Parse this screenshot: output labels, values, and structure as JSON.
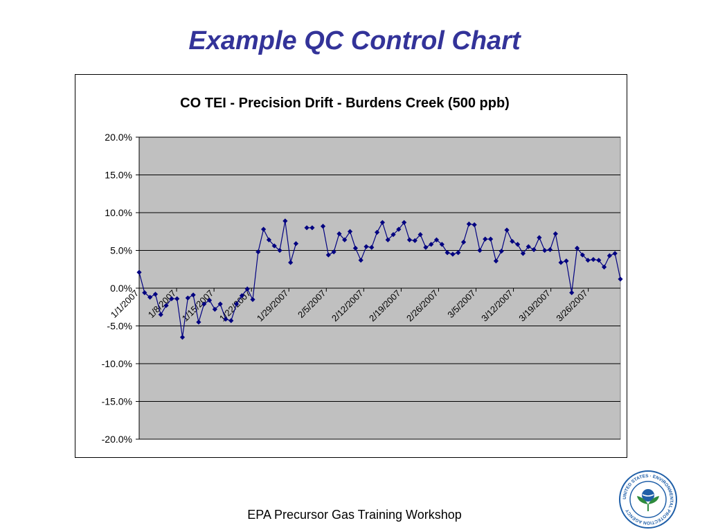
{
  "slide": {
    "title": "Example QC Control Chart",
    "footer": "EPA Precursor Gas Training Workshop"
  },
  "logo": {
    "icon": "epa-seal-icon",
    "ring_text": "UNITED STATES · ENVIRONMENTAL PROTECTION AGENCY"
  },
  "colors": {
    "title": "#333399",
    "plot_bg": "#c0c0c0",
    "series": "#000080",
    "logo_blue": "#1f5fa8",
    "logo_green": "#2e8b3d"
  },
  "chart_data": {
    "type": "line",
    "title": "CO TEI - Precision Drift - Burdens Creek (500 ppb)",
    "xlabel": "",
    "ylabel": "",
    "ylim": [
      -20,
      20
    ],
    "yticks": [
      20,
      15,
      10,
      5,
      0,
      -5,
      -10,
      -15,
      -20
    ],
    "ytick_labels": [
      "20.0%",
      "15.0%",
      "10.0%",
      "5.0%",
      "0.0%",
      "-5.0%",
      "-10.0%",
      "-15.0%",
      "-20.0%"
    ],
    "x_start_date": "1/1/2007",
    "x_end_date": "4/1/2007",
    "x_tick_labels": [
      "1/1/2007",
      "1/8/2007",
      "1/15/2007",
      "1/22/2007",
      "1/29/2007",
      "2/5/2007",
      "2/12/2007",
      "2/19/2007",
      "2/26/2007",
      "3/5/2007",
      "3/12/2007",
      "3/19/2007",
      "3/26/2007"
    ],
    "grid": true,
    "legend": "none",
    "series": [
      {
        "values": [
          2.1,
          -0.6,
          -1.2,
          -0.8,
          -3.5,
          -2.3,
          -1.4,
          -1.4,
          -6.5,
          -1.3,
          -0.9,
          -4.5,
          -2.1,
          -1.6,
          -2.8,
          -2.1,
          -4.1,
          -4.3,
          -2.1,
          -1.0,
          -0.1,
          -1.5,
          4.8,
          7.8,
          6.4,
          5.6,
          5.0,
          8.9,
          3.4,
          5.9,
          null,
          8.0,
          8.0,
          null,
          8.2,
          4.4,
          4.8,
          7.2,
          6.4,
          7.5,
          5.3,
          3.7,
          5.5,
          5.4,
          7.4,
          8.7,
          6.4,
          7.1,
          7.8,
          8.7,
          6.4,
          6.3,
          7.1,
          5.4,
          5.8,
          6.4,
          5.8,
          4.7,
          4.5,
          4.7,
          6.1,
          8.5,
          8.4,
          5.0,
          6.5,
          6.5,
          3.6,
          4.9,
          7.7,
          6.2,
          5.8,
          4.6,
          5.5,
          5.1,
          6.7,
          5.0,
          5.1,
          7.2,
          3.4,
          3.6,
          -0.6,
          5.3,
          4.4,
          3.7,
          3.8,
          3.7,
          2.8,
          4.3,
          4.6,
          1.2
        ]
      }
    ]
  }
}
